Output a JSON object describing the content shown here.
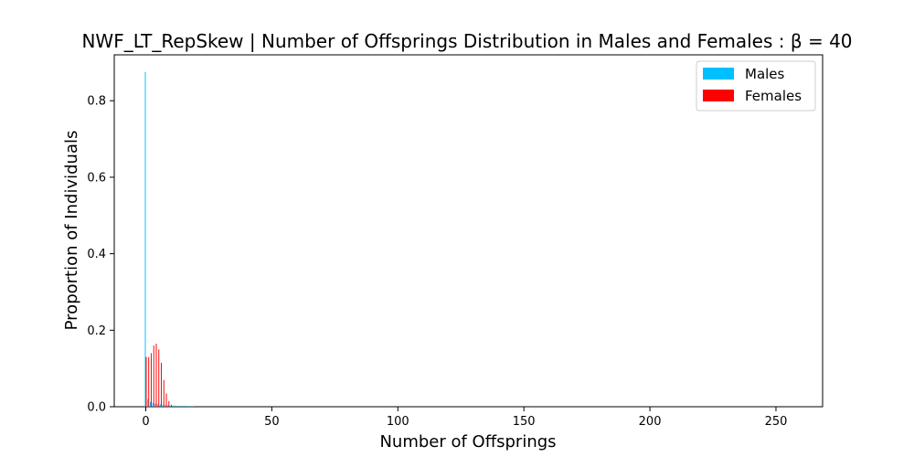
{
  "chart_data": {
    "type": "bar",
    "title": "NWF_LT_RepSkew | Number of Offsprings Distribution in Males and Females : β = 40",
    "xlabel": "Number of Offsprings",
    "ylabel": "Proportion of Individuals",
    "xlim": [
      -12.5,
      268.5
    ],
    "ylim": [
      0,
      0.92
    ],
    "xticks": [
      0,
      50,
      100,
      150,
      200,
      250
    ],
    "xtick_labels": [
      "0",
      "50",
      "100",
      "150",
      "200",
      "250"
    ],
    "yticks": [
      0.0,
      0.2,
      0.4,
      0.6,
      0.8
    ],
    "ytick_labels": [
      "0.0",
      "0.2",
      "0.4",
      "0.6",
      "0.8"
    ],
    "grid": false,
    "legend": {
      "position": "top-right"
    },
    "series": [
      {
        "name": "Males",
        "color": "#00bfff",
        "x": [
          0,
          1,
          2,
          3,
          4,
          5,
          6,
          7,
          8,
          9,
          10,
          11,
          12,
          13,
          14,
          15,
          16,
          17,
          18,
          19
        ],
        "values": [
          0.875,
          0.02,
          0.013,
          0.01,
          0.008,
          0.007,
          0.006,
          0.005,
          0.004,
          0.004,
          0.003,
          0.003,
          0.003,
          0.002,
          0.002,
          0.002,
          0.002,
          0.001,
          0.001,
          0.001
        ]
      },
      {
        "name": "Females",
        "color": "#ff0000",
        "x": [
          0,
          1,
          2,
          3,
          4,
          5,
          6,
          7,
          8,
          9,
          10
        ],
        "values": [
          0.13,
          0.13,
          0.14,
          0.16,
          0.165,
          0.15,
          0.115,
          0.07,
          0.035,
          0.015,
          0.005
        ]
      }
    ]
  }
}
